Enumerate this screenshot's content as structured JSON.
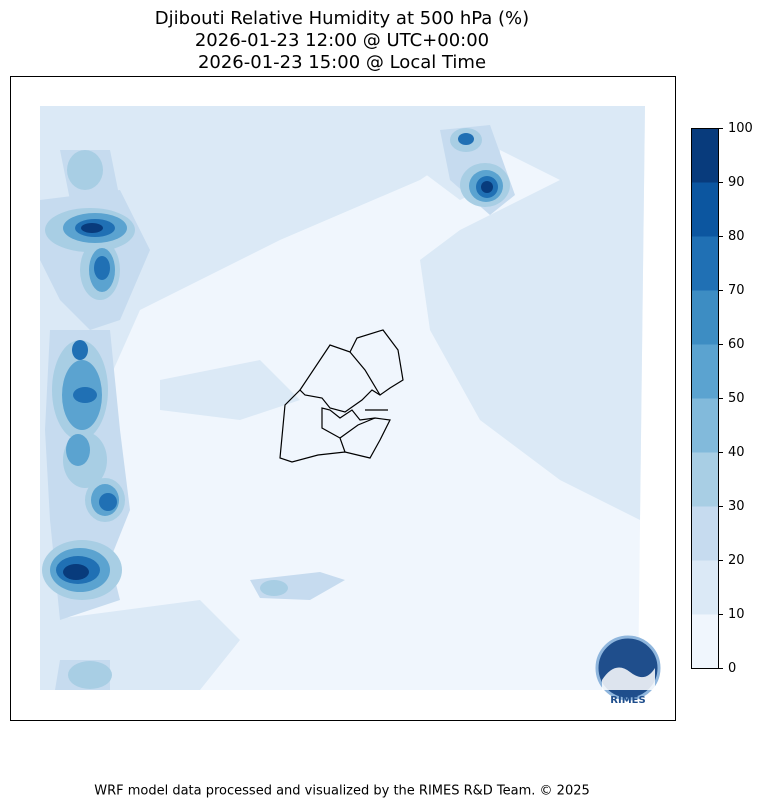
{
  "title": [
    "Djibouti Relative Humidity at 500 hPa (%)",
    "2026-01-23 12:00 @ UTC+00:00",
    "2026-01-23 15:00 @ Local Time"
  ],
  "colorbar": {
    "ticks": [
      0,
      10,
      20,
      30,
      40,
      50,
      60,
      70,
      80,
      90,
      100
    ],
    "colors": [
      "#f0f6fd",
      "#dbe9f6",
      "#c6dbef",
      "#a8cee4",
      "#82badb",
      "#5ba3d0",
      "#3d8dc3",
      "#2070b4",
      "#0c56a0",
      "#083b7c"
    ]
  },
  "logo": "RIMES",
  "footer": "WRF model data processed and visualized by the RIMES R&D Team. © 2025"
}
